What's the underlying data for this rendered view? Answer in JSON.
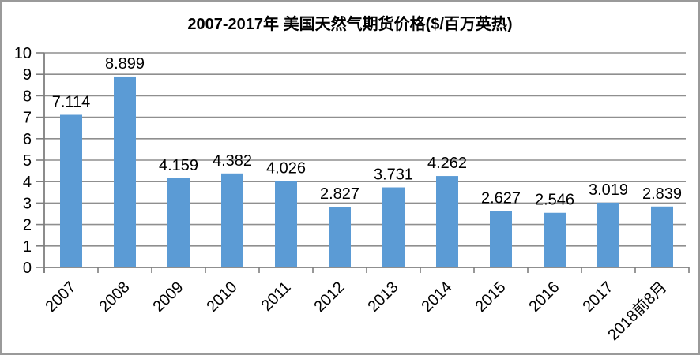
{
  "title": "2007-2017年 美国天然气期货价格($/百万英热)",
  "chart_data": {
    "type": "bar",
    "title": "2007-2017年 美国天然气期货价格($/百万英热)",
    "categories": [
      "2007",
      "2008",
      "2009",
      "2010",
      "2011",
      "2012",
      "2013",
      "2014",
      "2015",
      "2016",
      "2017",
      "2018前8月"
    ],
    "values": [
      7.114,
      8.899,
      4.159,
      4.382,
      4.026,
      2.827,
      3.731,
      4.262,
      2.627,
      2.546,
      3.019,
      2.839
    ],
    "labels": [
      "7.114",
      "8.899",
      "4.159",
      "4.382",
      "4.026",
      "2.827",
      "3.731",
      "4.262",
      "2.627",
      "2.546",
      "3.019",
      "2.839"
    ],
    "xlabel": "",
    "ylabel": "",
    "ylim": [
      0,
      10
    ],
    "yticks": [
      0,
      1,
      2,
      3,
      4,
      5,
      6,
      7,
      8,
      9,
      10
    ],
    "grid": true,
    "legend": "none",
    "x_label_rotation_deg": 45,
    "data_labels_visible": true
  },
  "colors": {
    "bar": "#5B9BD5",
    "gridline": "#8F8F8F",
    "axis": "#7F7F7F",
    "frame_border": "#9A9A9A",
    "text": "#000000",
    "background": "#FFFFFF"
  }
}
